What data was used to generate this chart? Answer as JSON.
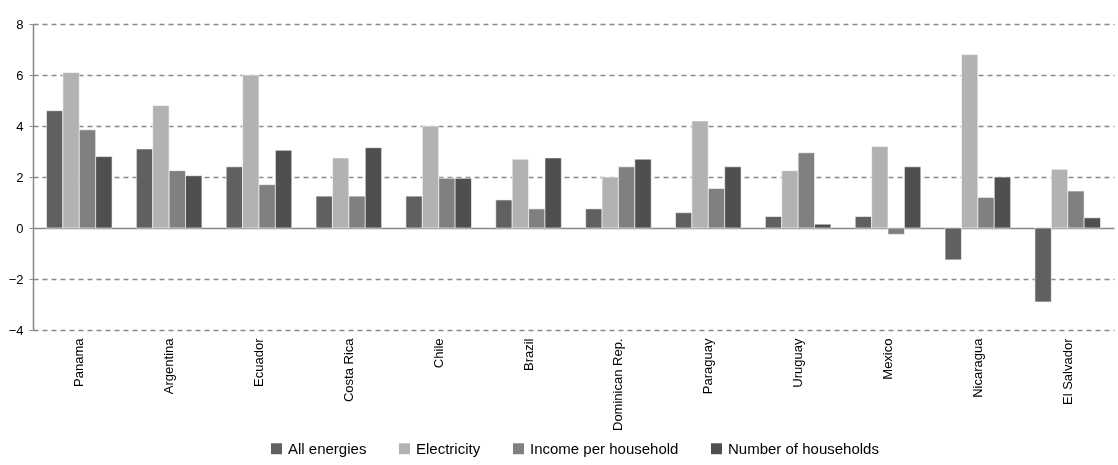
{
  "chart_data": {
    "type": "bar",
    "categories": [
      "Panama",
      "Argentina",
      "Ecuador",
      "Costa Rica",
      "Chile",
      "Brazil",
      "Dominican Rep.",
      "Paraguay",
      "Uruguay",
      "Mexico",
      "Nicaragua",
      "El Salvador"
    ],
    "series": [
      {
        "name": "All energies",
        "color": "#606060",
        "values": [
          4.6,
          3.1,
          2.4,
          1.25,
          1.25,
          1.1,
          0.75,
          0.6,
          0.45,
          0.45,
          -1.25,
          -2.9
        ]
      },
      {
        "name": "Electricity",
        "color": "#b2b2b2",
        "values": [
          6.1,
          4.8,
          6.0,
          2.75,
          4.0,
          2.7,
          2.0,
          4.2,
          2.25,
          3.2,
          6.8,
          2.3
        ]
      },
      {
        "name": "Income per household",
        "color": "#808080",
        "values": [
          3.85,
          2.25,
          1.7,
          1.25,
          1.95,
          0.75,
          2.4,
          1.55,
          2.95,
          -0.25,
          1.2,
          1.45
        ]
      },
      {
        "name": "Number of households",
        "color": "#4f4f4f",
        "values": [
          2.8,
          2.05,
          3.05,
          3.15,
          1.95,
          2.75,
          2.7,
          2.4,
          0.15,
          2.4,
          2.0,
          0.4
        ]
      }
    ],
    "ylim": [
      -4,
      8
    ],
    "yticks": [
      -4,
      -2,
      0,
      2,
      4,
      6,
      8
    ],
    "grid": "y",
    "legend": "bottom"
  }
}
